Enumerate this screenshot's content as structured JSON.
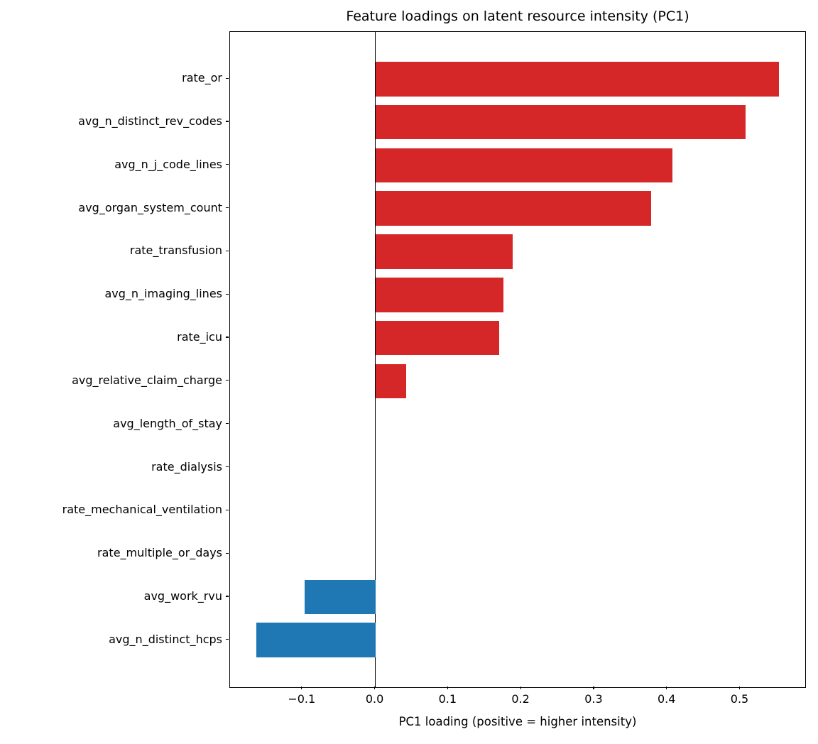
{
  "chart_data": {
    "type": "bar",
    "orientation": "horizontal",
    "title": "Feature loadings on latent resource intensity (PC1)",
    "xlabel": "PC1 loading (positive = higher intensity)",
    "ylabel": "",
    "categories": [
      "rate_or",
      "avg_n_distinct_rev_codes",
      "avg_n_j_code_lines",
      "avg_organ_system_count",
      "rate_transfusion",
      "avg_n_imaging_lines",
      "rate_icu",
      "avg_relative_claim_charge",
      "avg_length_of_stay",
      "rate_dialysis",
      "rate_mechanical_ventilation",
      "rate_multiple_or_days",
      "avg_work_rvu",
      "avg_n_distinct_hcps"
    ],
    "values": [
      0.553,
      0.507,
      0.407,
      0.378,
      0.188,
      0.176,
      0.17,
      0.042,
      0.0,
      0.0,
      0.0,
      0.0,
      -0.097,
      -0.163
    ],
    "xlim": [
      -0.199,
      0.589
    ],
    "xticks": [
      -0.1,
      0.0,
      0.1,
      0.2,
      0.3,
      0.4,
      0.5
    ],
    "xtick_labels": [
      "−0.1",
      "0.0",
      "0.1",
      "0.2",
      "0.3",
      "0.4",
      "0.5"
    ],
    "positive_color": "#d62728",
    "negative_color": "#1f77b4",
    "bar_height_ratio": 0.8,
    "grid": false,
    "zero_line": true,
    "legend": "none"
  }
}
